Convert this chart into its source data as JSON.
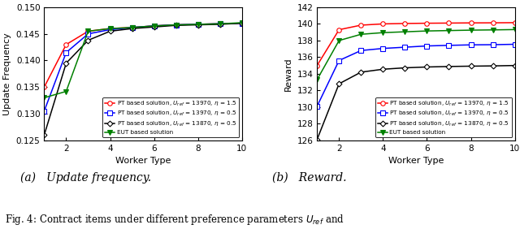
{
  "x": [
    1,
    2,
    3,
    4,
    5,
    6,
    7,
    8,
    9,
    10
  ],
  "left": {
    "ylim": [
      0.125,
      0.15
    ],
    "yticks": [
      0.125,
      0.13,
      0.135,
      0.14,
      0.145,
      0.15
    ],
    "ylabel": "Update Frequency",
    "xlabel": "Worker Type",
    "series": {
      "pt_13970_15": {
        "color": "red",
        "marker": "o",
        "markerfilled": false,
        "label": "PT based solution, $U_{ref}$ = 13970, $\\eta$ = 1.5",
        "values": [
          0.135,
          0.143,
          0.1455,
          0.146,
          0.1462,
          0.1465,
          0.1467,
          0.1468,
          0.1469,
          0.147
        ]
      },
      "pt_13970_05": {
        "color": "blue",
        "marker": "s",
        "markerfilled": false,
        "label": "PT based solution, $U_{ref}$ = 13970, $\\eta$ = 0.5",
        "values": [
          0.1305,
          0.1415,
          0.145,
          0.1458,
          0.1462,
          0.1465,
          0.1467,
          0.1468,
          0.1469,
          0.147
        ]
      },
      "pt_13870_05": {
        "color": "black",
        "marker": "D",
        "markerfilled": false,
        "label": "PT based solution, $U_{ref}$ = 13870, $\\eta$ = 0.5",
        "values": [
          0.126,
          0.1395,
          0.1438,
          0.1455,
          0.146,
          0.1463,
          0.1466,
          0.1467,
          0.1468,
          0.147
        ]
      },
      "eut": {
        "color": "green",
        "marker": "v",
        "markerfilled": true,
        "label": "EUT based solution",
        "values": [
          0.133,
          0.1342,
          0.1455,
          0.146,
          0.1462,
          0.1465,
          0.1467,
          0.1468,
          0.1469,
          0.1471
        ]
      }
    }
  },
  "right": {
    "ylim": [
      126,
      142
    ],
    "yticks": [
      126,
      128,
      130,
      132,
      134,
      136,
      138,
      140,
      142
    ],
    "ylabel": "Reward",
    "xlabel": "Worker Type",
    "series": {
      "pt_13970_15": {
        "color": "red",
        "marker": "o",
        "markerfilled": false,
        "label": "PT based solution, $U_{ref}$ = 13970, $\\eta$ = 1.5",
        "values": [
          135.0,
          139.3,
          139.85,
          140.0,
          140.05,
          140.08,
          140.1,
          140.12,
          140.13,
          140.15
        ]
      },
      "pt_13970_05": {
        "color": "blue",
        "marker": "s",
        "markerfilled": false,
        "label": "PT based solution, $U_{ref}$ = 13970, $\\eta$ = 0.5",
        "values": [
          130.1,
          135.6,
          136.8,
          137.05,
          137.2,
          137.35,
          137.42,
          137.48,
          137.5,
          137.55
        ]
      },
      "pt_13870_05": {
        "color": "black",
        "marker": "D",
        "markerfilled": false,
        "label": "PT based solution, $U_{ref}$ = 13870, $\\eta$ = 0.5",
        "values": [
          126.1,
          132.8,
          134.2,
          134.55,
          134.72,
          134.82,
          134.88,
          134.92,
          134.95,
          135.0
        ]
      },
      "eut": {
        "color": "green",
        "marker": "v",
        "markerfilled": true,
        "label": "EUT based solution",
        "values": [
          133.3,
          138.0,
          138.75,
          138.95,
          139.05,
          139.15,
          139.2,
          139.25,
          139.28,
          139.32
        ]
      }
    }
  },
  "caption_a": "(a)   Update frequency.",
  "caption_b": "(b)   Reward.",
  "fig_caption": "Fig. 4: Contract items under different preference parameters $U_{ref}$ and"
}
